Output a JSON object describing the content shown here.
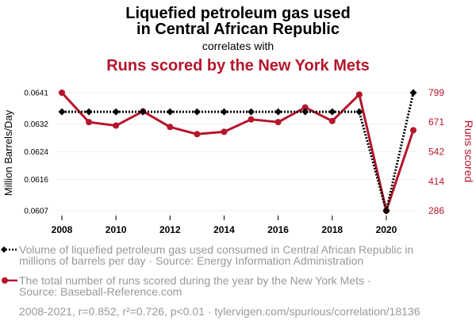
{
  "header": {
    "title_line1": "Liquefied petroleum gas used",
    "title_line2": "in Central African Republic",
    "correlates": "correlates with",
    "title2": "Runs scored by the New York Mets"
  },
  "colors": {
    "series1": "#000000",
    "series2": "#b5162b",
    "muted": "#999999",
    "grid": "#eeeeee"
  },
  "chart_data": {
    "type": "line",
    "x": [
      2008,
      2009,
      2010,
      2011,
      2012,
      2013,
      2014,
      2015,
      2016,
      2017,
      2018,
      2019,
      2020,
      2021
    ],
    "xlim": [
      2008,
      2021
    ],
    "xticks": [
      "2008",
      "2010",
      "2012",
      "2014",
      "2016",
      "2018",
      "2020"
    ],
    "series": [
      {
        "name": "Liquefied petroleum gas used in Central African Republic",
        "axis": "left",
        "values": [
          0.06355,
          0.06355,
          0.06355,
          0.06355,
          0.06355,
          0.06355,
          0.06355,
          0.06355,
          0.06355,
          0.06355,
          0.06355,
          0.06355,
          0.0607,
          0.0641
        ],
        "style": "dotted",
        "marker": "diamond"
      },
      {
        "name": "Runs scored by the New York Mets",
        "axis": "right",
        "values": [
          799,
          671,
          656,
          718,
          650,
          619,
          629,
          683,
          671,
          735,
          676,
          791,
          286,
          636
        ],
        "style": "solid",
        "marker": "circle"
      }
    ],
    "left_axis": {
      "label": "Million Barrels/Day",
      "ticks": [
        "0.0607",
        "0.0616",
        "0.0624",
        "0.0632",
        "0.0641"
      ],
      "ylim": [
        0.0607,
        0.0641
      ]
    },
    "right_axis": {
      "label": "Runs scored",
      "ticks": [
        "286",
        "414",
        "542",
        "671",
        "799"
      ],
      "ylim": [
        286,
        799
      ]
    }
  },
  "legend": {
    "item1_line1": "Volume of liquefied petroleum gas used consumed in Central African Republic in",
    "item1_line2": "millions of barrels per day · Source: Energy Information Administration",
    "item2_line1": "The total number of runs scored during the year by the New York Mets ·",
    "item2_line2": "Source: Baseball-Reference.com"
  },
  "footer": {
    "text": "2008-2021, r=0.852, r²=0.726, p<0.01 · tylervigen.com/spurious/correlation/18136"
  }
}
